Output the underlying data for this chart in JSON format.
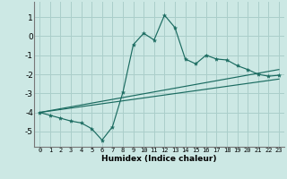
{
  "title": "",
  "xlabel": "Humidex (Indice chaleur)",
  "bg_color": "#cce8e4",
  "grid_color": "#aaceca",
  "line_color": "#1a6b60",
  "xlim": [
    -0.5,
    23.5
  ],
  "ylim": [
    -5.8,
    1.8
  ],
  "yticks": [
    1,
    0,
    -1,
    -2,
    -3,
    -4,
    -5
  ],
  "xticks": [
    0,
    1,
    2,
    3,
    4,
    5,
    6,
    7,
    8,
    9,
    10,
    11,
    12,
    13,
    14,
    15,
    16,
    17,
    18,
    19,
    20,
    21,
    22,
    23
  ],
  "line1_x": [
    0,
    1,
    2,
    3,
    4,
    5,
    6,
    7,
    8,
    9,
    10,
    11,
    12,
    13,
    14,
    15,
    16,
    17,
    18,
    19,
    20,
    21,
    22,
    23
  ],
  "line1_y": [
    -4.0,
    -4.15,
    -4.3,
    -4.45,
    -4.55,
    -4.85,
    -5.45,
    -4.75,
    -2.95,
    -0.45,
    0.15,
    -0.2,
    1.1,
    0.45,
    -1.2,
    -1.45,
    -1.0,
    -1.2,
    -1.25,
    -1.55,
    -1.75,
    -2.0,
    -2.1,
    -2.05
  ],
  "line2_x": [
    0,
    23
  ],
  "line2_y": [
    -4.0,
    -1.75
  ],
  "line3_x": [
    0,
    23
  ],
  "line3_y": [
    -4.0,
    -2.25
  ]
}
